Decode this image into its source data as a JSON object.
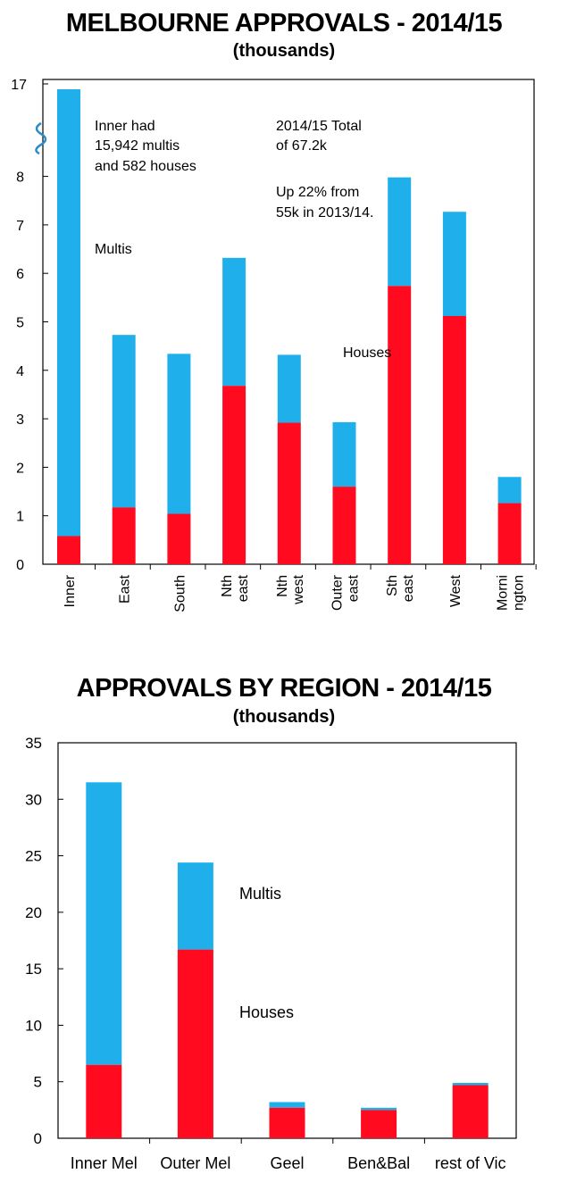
{
  "chart_data": [
    {
      "type": "bar",
      "stacked": true,
      "title": "MELBOURNE APPROVALS - 2014/15",
      "subtitle": "(thousands)",
      "categories": [
        "Inner",
        "East",
        "South",
        "Nth\neast",
        "Nth\nwest",
        "Outer\neast",
        "Sth\neast",
        "West",
        "Morni\nngton"
      ],
      "series": [
        {
          "name": "Houses",
          "values": [
            0.58,
            1.17,
            1.04,
            3.68,
            2.92,
            1.6,
            5.74,
            5.12,
            1.26
          ],
          "color": "#ff0a1e"
        },
        {
          "name": "Multis",
          "values": [
            15.94,
            3.56,
            3.3,
            2.64,
            1.4,
            1.33,
            2.24,
            2.15,
            0.54
          ],
          "color": "#1fb0eb"
        }
      ],
      "yticks": [
        "0",
        "1",
        "2",
        "3",
        "4",
        "5",
        "6",
        "7",
        "8",
        "17"
      ],
      "ylim": [
        0,
        17
      ],
      "y_axis_break": [
        8.6,
        16.8
      ],
      "annotations": [
        "Inner had",
        "15,942 multis",
        "and 582 houses",
        "2014/15 Total",
        "of 67.2k",
        "Up 22% from",
        "55k in 2013/14."
      ],
      "legend": "inline labels"
    },
    {
      "type": "bar",
      "stacked": true,
      "title": "APPROVALS BY REGION - 2014/15",
      "subtitle": "(thousands)",
      "categories": [
        "Inner Mel",
        "Outer Mel",
        "Geel",
        "Ben&Bal",
        "rest of Vic"
      ],
      "series": [
        {
          "name": "Houses",
          "values": [
            6.5,
            16.7,
            2.7,
            2.5,
            4.7
          ],
          "color": "#ff0a1e"
        },
        {
          "name": "Multis",
          "values": [
            25.0,
            7.7,
            0.5,
            0.2,
            0.2
          ],
          "color": "#1fb0eb"
        }
      ],
      "yticks": [
        "0",
        "5",
        "10",
        "15",
        "20",
        "25",
        "30",
        "35"
      ],
      "ylim": [
        0,
        35
      ],
      "legend": "inline labels"
    }
  ]
}
